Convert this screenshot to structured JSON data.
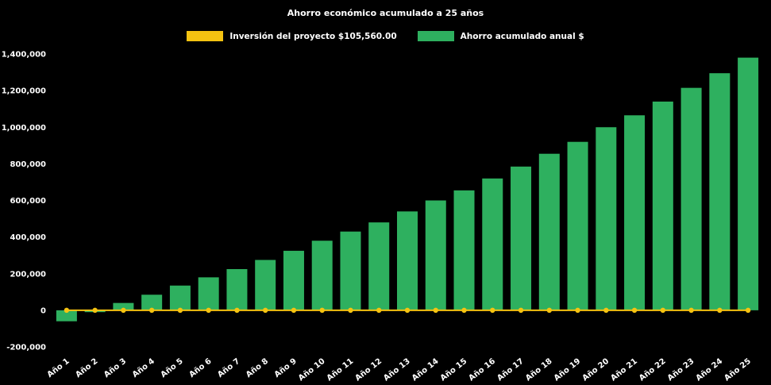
{
  "title": "Ahorro económico acumulado a 25 años",
  "colors": {
    "background": "#000000",
    "text": "#ffffff",
    "bar_green": "#2eb05f",
    "line_yellow": "#f5c311"
  },
  "legend": [
    {
      "label": "Inversión del proyecto $105,560.00",
      "color": "#f5c311"
    },
    {
      "label": "Ahorro acumulado anual $",
      "color": "#2eb05f"
    }
  ],
  "chart_data": {
    "type": "bar",
    "title": "Ahorro económico acumulado a 25 años",
    "categories": [
      "Año 1",
      "Año 2",
      "Año 3",
      "Año 4",
      "Año 5",
      "Año 6",
      "Año 7",
      "Año 8",
      "Año 9",
      "Año 10",
      "Año 11",
      "Año 12",
      "Año 13",
      "Año 14",
      "Año 15",
      "Año 16",
      "Año 17",
      "Año 18",
      "Año 19",
      "Año 20",
      "Año 21",
      "Año 22",
      "Año 23",
      "Año 24",
      "Año 25"
    ],
    "series": [
      {
        "name": "Ahorro acumulado anual $",
        "type": "bar",
        "color": "#2eb05f",
        "values": [
          -60000,
          -10000,
          40000,
          85000,
          135000,
          180000,
          225000,
          275000,
          325000,
          380000,
          430000,
          480000,
          540000,
          600000,
          655000,
          720000,
          785000,
          855000,
          920000,
          1000000,
          1065000,
          1140000,
          1215000,
          1295000,
          1380000
        ]
      },
      {
        "name": "Inversión del proyecto $105,560.00",
        "type": "line",
        "color": "#f5c311",
        "values": [
          0,
          0,
          0,
          0,
          0,
          0,
          0,
          0,
          0,
          0,
          0,
          0,
          0,
          0,
          0,
          0,
          0,
          0,
          0,
          0,
          0,
          0,
          0,
          0,
          0
        ]
      }
    ],
    "xlabel": "",
    "ylabel": "",
    "ylim": [
      -200000,
      1400000
    ],
    "ytick_step": 200000,
    "ytick_labels": [
      "-200,000",
      "0",
      "200,000",
      "400,000",
      "600,000",
      "800,000",
      "1,000,000",
      "1,200,000",
      "1,400,000"
    ],
    "grid": false,
    "legend_position": "top",
    "background": "#000000"
  }
}
